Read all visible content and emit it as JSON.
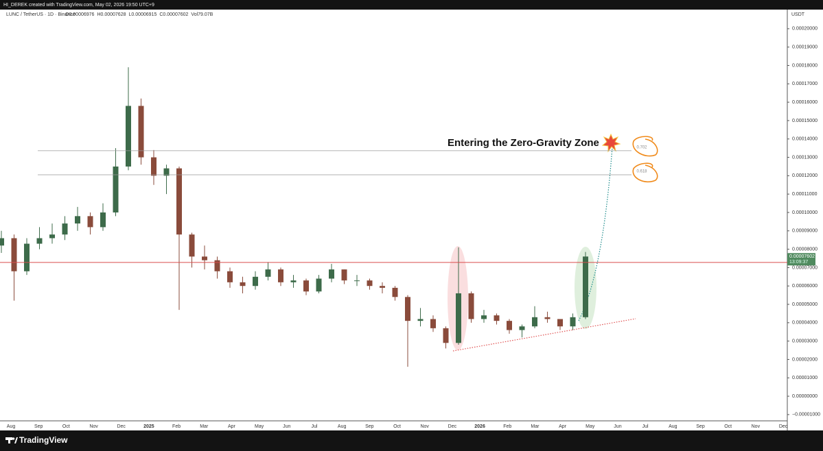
{
  "header": "HI_DEREK created with TradingView.com, May 02, 2026 19:50 UTC+9",
  "footer": "TradingView",
  "chart_data": {
    "type": "candlestick",
    "symbol": "LUNC / TetherUS · 1D · Binance",
    "ohlc_legend": [
      "O0.00006976",
      "H0.00007628",
      "L0.00006915",
      "C0.00007602",
      "Vol79.07B"
    ],
    "currency": "USDT",
    "annotation": "Entering the Zero-Gravity Zone",
    "x_labels": [
      "Aug",
      "Sep",
      "Oct",
      "Nov",
      "Dec",
      "2025",
      "Feb",
      "Mar",
      "Apr",
      "May",
      "Jun",
      "Jul",
      "Aug",
      "Sep",
      "Oct",
      "Nov",
      "Dec",
      "2026",
      "Feb",
      "Mar",
      "Apr",
      "May",
      "Jun",
      "Jul",
      "Aug",
      "Sep",
      "Oct",
      "Nov",
      "Dec"
    ],
    "ylim": [
      -1.34e-05,
      0.0002104
    ],
    "yticks": [
      {
        "value": -1e-05,
        "label": "−0.00001000"
      },
      {
        "value": 0,
        "label": "0.00000000"
      },
      {
        "value": 1e-05,
        "label": "0.00001000"
      },
      {
        "value": 2e-05,
        "label": "0.00002000"
      },
      {
        "value": 3e-05,
        "label": "0.00003000"
      },
      {
        "value": 4e-05,
        "label": "0.00004000"
      },
      {
        "value": 5e-05,
        "label": "0.00005000"
      },
      {
        "value": 6e-05,
        "label": "0.00006000"
      },
      {
        "value": 7e-05,
        "label": "0.00007000"
      },
      {
        "value": 8e-05,
        "label": "0.00008000"
      },
      {
        "value": 9e-05,
        "label": "0.00009000"
      },
      {
        "value": 0.0001,
        "label": "0.00010000"
      },
      {
        "value": 0.00011,
        "label": "0.00011000"
      },
      {
        "value": 0.00012,
        "label": "0.00012000"
      },
      {
        "value": 0.00013,
        "label": "0.00013000"
      },
      {
        "value": 0.00014,
        "label": "0.00014000"
      },
      {
        "value": 0.00015,
        "label": "0.00015000"
      },
      {
        "value": 0.00016,
        "label": "0.00016000"
      },
      {
        "value": 0.00017,
        "label": "0.00017000"
      },
      {
        "value": 0.00018,
        "label": "0.00018000"
      },
      {
        "value": 0.00019,
        "label": "0.00019000"
      },
      {
        "value": 0.0002,
        "label": "0.00020000"
      }
    ],
    "up_color": "#3d6b4a",
    "down_color": "#8a4b3b",
    "series": [
      {
        "open": [
          8.2e-05,
          8.6e-05,
          6.8e-05,
          8.3e-05,
          8.6e-05,
          8.8e-05,
          9.4e-05,
          9.8e-05,
          9.2e-05,
          0.0001,
          0.000125,
          0.000158,
          0.00013,
          0.00012,
          0.000124,
          8.8e-05,
          7.6e-05,
          7.4e-05,
          6.8e-05,
          6.2e-05,
          6e-05,
          6.5e-05,
          6.9e-05,
          6.2e-05,
          6.3e-05,
          5.7e-05,
          6.4e-05,
          6.9e-05,
          6.3e-05,
          6.3e-05,
          6e-05,
          5.9e-05,
          5.4e-05,
          4.1e-05,
          4.2e-05,
          3.7e-05,
          2.9e-05,
          5.6e-05,
          4.2e-05,
          4.4e-05,
          4.1e-05,
          3.6e-05,
          3.8e-05,
          4.3e-05,
          4.2e-05,
          3.8e-05,
          4.3e-05
        ],
        "high": [
          9e-05,
          8.8e-05,
          8.6e-05,
          9.2e-05,
          9.4e-05,
          9.8e-05,
          0.000103,
          0.0001,
          0.000105,
          0.000135,
          0.000179,
          0.000162,
          0.000134,
          0.000126,
          0.000125,
          8.9e-05,
          8.2e-05,
          7.6e-05,
          7e-05,
          6.5e-05,
          6.8e-05,
          7.3e-05,
          7e-05,
          6.6e-05,
          6.4e-05,
          6.6e-05,
          7.2e-05,
          6.9e-05,
          6.6e-05,
          6.4e-05,
          6.2e-05,
          6e-05,
          5.5e-05,
          4.8e-05,
          4.4e-05,
          3.8e-05,
          8.1e-05,
          5.7e-05,
          4.7e-05,
          4.5e-05,
          4.2e-05,
          3.9e-05,
          4.9e-05,
          4.6e-05,
          4.2e-05,
          4.5e-05,
          7.85e-05
        ],
        "low": [
          7.8e-05,
          5.2e-05,
          6.6e-05,
          8e-05,
          8.3e-05,
          8.5e-05,
          9e-05,
          8.8e-05,
          9e-05,
          9.8e-05,
          0.000123,
          0.000126,
          0.000115,
          0.00011,
          4.7e-05,
          7e-05,
          6.9e-05,
          6.4e-05,
          5.9e-05,
          5.6e-05,
          5.8e-05,
          6.3e-05,
          6e-05,
          5.9e-05,
          5.5e-05,
          5.6e-05,
          6.2e-05,
          6.1e-05,
          6e-05,
          5.8e-05,
          5.6e-05,
          5.2e-05,
          1.6e-05,
          3.8e-05,
          3.5e-05,
          2.6e-05,
          2.8e-05,
          4e-05,
          4e-05,
          3.9e-05,
          3.4e-05,
          3.2e-05,
          3.7e-05,
          4e-05,
          3.6e-05,
          3.6e-05,
          4.2e-05
        ],
        "close": [
          8.6e-05,
          6.8e-05,
          8.3e-05,
          8.6e-05,
          8.8e-05,
          9.4e-05,
          9.8e-05,
          9.2e-05,
          0.0001,
          0.000125,
          0.000158,
          0.00013,
          0.00012,
          0.000124,
          8.8e-05,
          7.6e-05,
          7.4e-05,
          6.8e-05,
          6.2e-05,
          6e-05,
          6.5e-05,
          6.9e-05,
          6.2e-05,
          6.3e-05,
          5.7e-05,
          6.4e-05,
          6.9e-05,
          6.3e-05,
          6.3e-05,
          6e-05,
          5.9e-05,
          5.4e-05,
          4.1e-05,
          4.2e-05,
          3.7e-05,
          2.9e-05,
          5.6e-05,
          4.2e-05,
          4.4e-05,
          4.1e-05,
          3.6e-05,
          3.8e-05,
          4.3e-05,
          4.2e-05,
          3.8e-05,
          4.3e-05,
          7.602e-05
        ]
      }
    ],
    "levels": [
      {
        "label": "0.702",
        "value": 0.0001336
      },
      {
        "label": "0.618",
        "value": 0.0001205
      }
    ],
    "hline": {
      "value": 7.28e-05,
      "color": "#d94c4c"
    },
    "last_price": {
      "value": 7.602e-05,
      "label": "0.00007602",
      "countdown": "13:09:37",
      "color": "#4f8a5e"
    }
  }
}
